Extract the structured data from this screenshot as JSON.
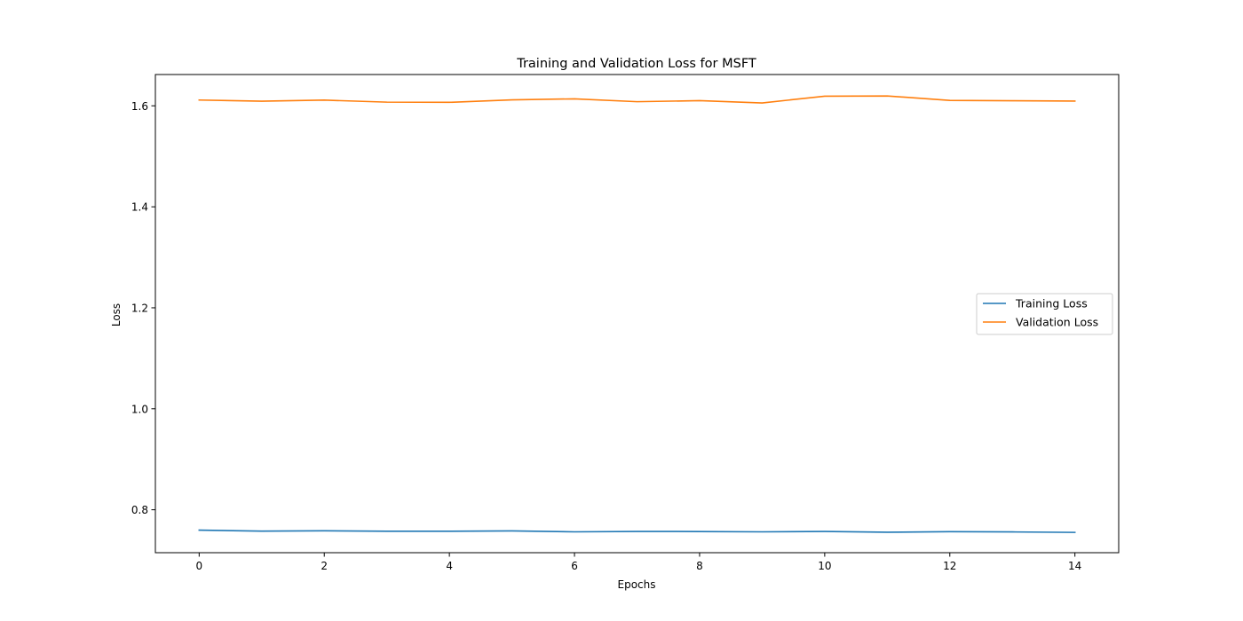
{
  "chart_data": {
    "type": "line",
    "title": "Training and Validation Loss for MSFT",
    "xlabel": "Epochs",
    "ylabel": "Loss",
    "x": [
      0,
      1,
      2,
      3,
      4,
      5,
      6,
      7,
      8,
      9,
      10,
      11,
      12,
      13,
      14
    ],
    "xlim": [
      -0.7,
      14.7
    ],
    "ylim": [
      0.715,
      1.662
    ],
    "xticks": [
      0,
      2,
      4,
      6,
      8,
      10,
      12,
      14
    ],
    "yticks": [
      0.8,
      1.0,
      1.2,
      1.4,
      1.6
    ],
    "ytick_labels": [
      "0.8",
      "1.0",
      "1.2",
      "1.4",
      "1.6"
    ],
    "grid": false,
    "legend_position": "center-right",
    "series": [
      {
        "name": "Training Loss",
        "color": "#1f77b4",
        "values": [
          0.7597,
          0.7578,
          0.7583,
          0.7575,
          0.7575,
          0.7581,
          0.7563,
          0.7571,
          0.7569,
          0.7563,
          0.7571,
          0.7555,
          0.7566,
          0.7561,
          0.7552
        ]
      },
      {
        "name": "Validation Loss",
        "color": "#ff7f0e",
        "values": [
          1.6115,
          1.6092,
          1.6113,
          1.6073,
          1.6069,
          1.6118,
          1.6138,
          1.6082,
          1.6102,
          1.6057,
          1.6191,
          1.6195,
          1.6108,
          1.6101,
          1.6094
        ]
      }
    ]
  }
}
